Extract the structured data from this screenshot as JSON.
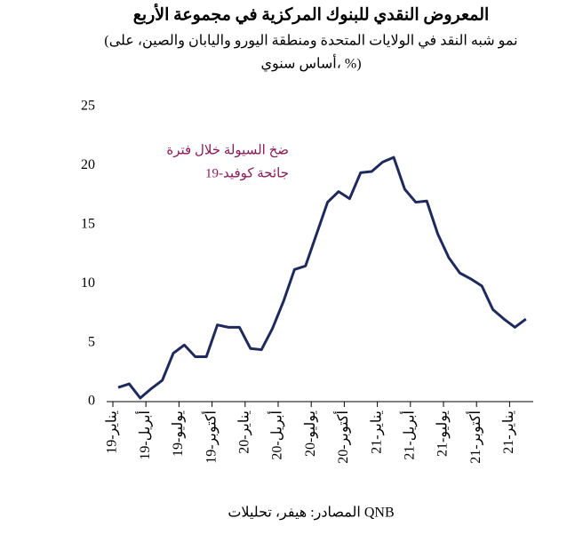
{
  "chart_data": {
    "type": "line",
    "title": "المعروض النقدي للبنوك المركزية في مجموعة الأربع",
    "subtitle": [
      "(نمو شبه النقد في الولايات المتحدة ومنطقة اليورو واليابان والصين، على",
      "أساس سنوي، %)"
    ],
    "annotation": [
      "ضخ السيولة خلال فترة",
      "جائحة كوفيد-19"
    ],
    "source": "المصادر: هيفر، تحليلات QNB",
    "categories": [
      "يناير-19",
      null,
      null,
      "أبريل-19",
      null,
      null,
      "يوليو-19",
      null,
      null,
      "أكتوبر-19",
      null,
      null,
      "يناير-20",
      null,
      null,
      "أبريل-20",
      null,
      null,
      "يوليو-20",
      null,
      null,
      "أكتوبر-20",
      null,
      null,
      "يناير-21",
      null,
      null,
      "أبريل-21",
      null,
      null,
      "يوليو-21",
      null,
      null,
      "أكتوبر-21",
      null,
      null,
      "يناير-21",
      null
    ],
    "series": [
      {
        "name": null,
        "color": "#1f2a5c",
        "values": [
          1.2,
          1.5,
          0.3,
          1.1,
          1.8,
          4.1,
          4.8,
          3.8,
          3.8,
          6.5,
          6.3,
          6.3,
          4.5,
          4.4,
          6.2,
          8.5,
          11.2,
          11.5,
          14.2,
          16.9,
          17.8,
          17.2,
          19.4,
          19.5,
          20.3,
          20.7,
          18.0,
          16.9,
          17.0,
          14.2,
          12.2,
          10.9,
          10.4,
          9.8,
          7.8,
          7.0,
          6.3,
          7.0
        ]
      }
    ],
    "ylim": [
      0,
      25
    ],
    "yticks": [
      0,
      5,
      10,
      15,
      20,
      25
    ],
    "grid": false
  }
}
